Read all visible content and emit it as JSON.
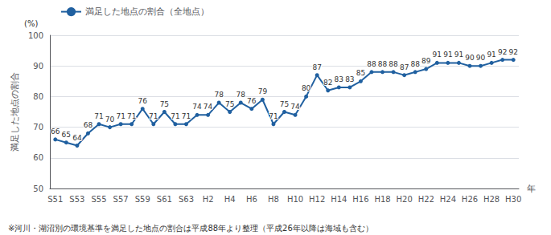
{
  "chart_data": {
    "type": "line",
    "categories": [
      "S51",
      null,
      "S53",
      null,
      "S55",
      null,
      "S57",
      null,
      "S59",
      null,
      "S61",
      null,
      "S63",
      null,
      "H2",
      null,
      "H4",
      null,
      "H6",
      null,
      "H8",
      null,
      "H10",
      null,
      "H12",
      null,
      "H14",
      null,
      "H16",
      null,
      "H18",
      null,
      "H20",
      null,
      "H22",
      null,
      "H24",
      null,
      "H26",
      null,
      "H28",
      null,
      "H30"
    ],
    "series": [
      {
        "name": "満足した地点の割合（全地点）",
        "color": "#2060a0",
        "marker": "circle",
        "values": [
          66,
          65,
          64,
          68,
          71,
          70,
          71,
          71,
          76,
          71,
          75,
          71,
          71,
          74,
          74,
          78,
          75,
          78,
          76,
          79,
          71,
          75,
          74,
          80,
          87,
          82,
          83,
          83,
          85,
          88,
          88,
          88,
          87,
          88,
          89,
          91,
          91,
          91,
          90,
          90,
          91,
          92,
          92
        ]
      }
    ],
    "ylabel": "満足した地点の割合",
    "xlabel": "年",
    "annotations": [
      "(%)",
      "※河川・湖沼別の環境基準を満足した地点の割合は平成88年より整理（平成26年以降は海域も含む）"
    ],
    "ylim": [
      50,
      100
    ],
    "yticks": [
      50,
      60,
      70,
      80,
      90,
      100
    ],
    "grid": true,
    "legend": "upper left",
    "data_labels": true
  }
}
